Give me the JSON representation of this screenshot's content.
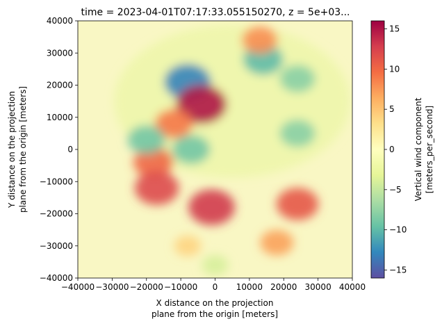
{
  "chart_data": {
    "type": "heatmap",
    "title": "time = 2023-04-01T07:17:33.055150270, z = 5e+03...",
    "xlabel": [
      "X distance on the projection",
      "plane from the origin [meters]"
    ],
    "ylabel": [
      "Y distance on the projection",
      "plane from the origin [meters]"
    ],
    "xlim": [
      -40000,
      40000
    ],
    "ylim": [
      -40000,
      40000
    ],
    "x_ticks": [
      -40000,
      -30000,
      -20000,
      -10000,
      0,
      10000,
      20000,
      30000,
      40000
    ],
    "x_tick_labels": [
      "−40000",
      "−30000",
      "−20000",
      "−10000",
      "0",
      "10000",
      "20000",
      "30000",
      "40000"
    ],
    "y_ticks": [
      -40000,
      -30000,
      -20000,
      -10000,
      0,
      10000,
      20000,
      30000,
      40000
    ],
    "y_tick_labels": [
      "−40000",
      "−30000",
      "−20000",
      "−10000",
      "0",
      "10000",
      "20000",
      "30000",
      "40000"
    ],
    "colorbar": {
      "label": [
        "Vertical wind component",
        "[meters_per_second]"
      ],
      "range": [
        -16,
        16
      ],
      "ticks": [
        -15,
        -10,
        -5,
        0,
        5,
        10,
        15
      ],
      "tick_labels": [
        "−15",
        "−10",
        "−5",
        "0",
        "5",
        "10",
        "15"
      ],
      "colormap": "Spectral_r",
      "colors": [
        "#5e4fa2",
        "#3288bd",
        "#66c2a5",
        "#abdda4",
        "#e6f598",
        "#ffffbf",
        "#fee08b",
        "#fdae61",
        "#f46d43",
        "#d53e4f",
        "#9e0142"
      ]
    },
    "field_features": [
      {
        "x": -8000,
        "y": 21000,
        "w": -13
      },
      {
        "x": 14000,
        "y": 28000,
        "w": -10
      },
      {
        "x": 24000,
        "y": 22000,
        "w": -8
      },
      {
        "x": -4000,
        "y": 14000,
        "w": 15
      },
      {
        "x": -12000,
        "y": 8000,
        "w": 9
      },
      {
        "x": 13000,
        "y": 34000,
        "w": 8
      },
      {
        "x": -18000,
        "y": -4000,
        "w": 10
      },
      {
        "x": -17000,
        "y": -12000,
        "w": 12
      },
      {
        "x": -1000,
        "y": -18000,
        "w": 13
      },
      {
        "x": 24000,
        "y": -17000,
        "w": 11
      },
      {
        "x": 18000,
        "y": -29000,
        "w": 7
      },
      {
        "x": -8000,
        "y": -30000,
        "w": 4
      },
      {
        "x": -20000,
        "y": 3000,
        "w": -9
      },
      {
        "x": -7000,
        "y": 0,
        "w": -9
      },
      {
        "x": 24000,
        "y": 5000,
        "w": -8
      },
      {
        "x": 0,
        "y": -36000,
        "w": -4
      }
    ]
  }
}
